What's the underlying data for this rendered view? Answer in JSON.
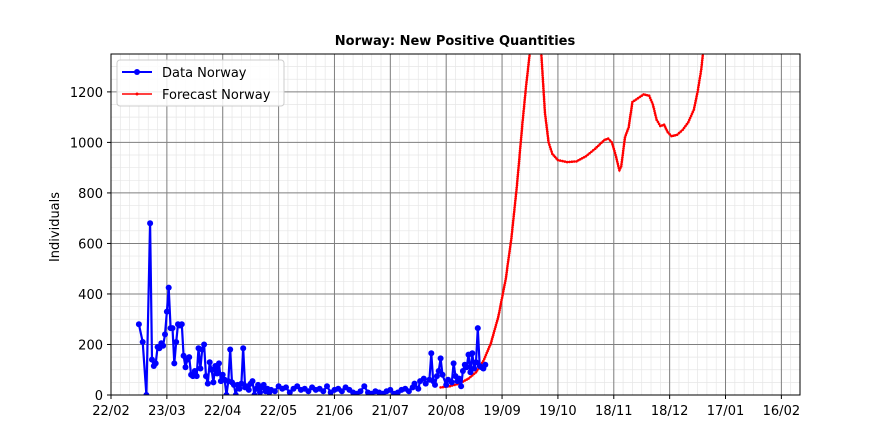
{
  "chart_data": {
    "type": "line",
    "title": "Norway: New Positive Quantities",
    "xlabel": "",
    "ylabel": "Individuals",
    "ylim": [
      0,
      1350
    ],
    "xlim": [
      "2020-02-22",
      "2021-02-26"
    ],
    "grid": true,
    "legend_position": "top-left",
    "x_tick_labels": [
      "22/02",
      "23/03",
      "22/04",
      "22/05",
      "21/06",
      "21/07",
      "20/08",
      "19/09",
      "19/10",
      "18/11",
      "18/12",
      "17/01",
      "16/02"
    ],
    "x_tick_dates": [
      "2020-02-22",
      "2020-03-23",
      "2020-04-22",
      "2020-05-22",
      "2020-06-21",
      "2020-07-21",
      "2020-08-20",
      "2020-09-19",
      "2020-10-19",
      "2020-11-18",
      "2020-12-18",
      "2021-01-17",
      "2021-02-16"
    ],
    "y_ticks": [
      0,
      200,
      400,
      600,
      800,
      1000,
      1200
    ],
    "series": [
      {
        "name": "Data Norway",
        "color": "#0000ff",
        "marker": "circle",
        "points": [
          [
            "2020-03-08",
            280
          ],
          [
            "2020-03-10",
            210
          ],
          [
            "2020-03-12",
            0
          ],
          [
            "2020-03-14",
            680
          ],
          [
            "2020-03-15",
            140
          ],
          [
            "2020-03-16",
            115
          ],
          [
            "2020-03-17",
            125
          ],
          [
            "2020-03-18",
            190
          ],
          [
            "2020-03-19",
            185
          ],
          [
            "2020-03-20",
            205
          ],
          [
            "2020-03-21",
            195
          ],
          [
            "2020-03-22",
            240
          ],
          [
            "2020-03-23",
            330
          ],
          [
            "2020-03-24",
            425
          ],
          [
            "2020-03-25",
            265
          ],
          [
            "2020-03-26",
            265
          ],
          [
            "2020-03-27",
            125
          ],
          [
            "2020-03-28",
            210
          ],
          [
            "2020-03-29",
            280
          ],
          [
            "2020-03-30",
            275
          ],
          [
            "2020-03-31",
            280
          ],
          [
            "2020-04-01",
            155
          ],
          [
            "2020-04-02",
            110
          ],
          [
            "2020-04-03",
            140
          ],
          [
            "2020-04-04",
            150
          ],
          [
            "2020-04-05",
            80
          ],
          [
            "2020-04-06",
            75
          ],
          [
            "2020-04-07",
            95
          ],
          [
            "2020-04-08",
            75
          ],
          [
            "2020-04-09",
            185
          ],
          [
            "2020-04-10",
            105
          ],
          [
            "2020-04-11",
            180
          ],
          [
            "2020-04-12",
            200
          ],
          [
            "2020-04-13",
            75
          ],
          [
            "2020-04-14",
            45
          ],
          [
            "2020-04-15",
            130
          ],
          [
            "2020-04-16",
            100
          ],
          [
            "2020-04-17",
            50
          ],
          [
            "2020-04-18",
            115
          ],
          [
            "2020-04-19",
            85
          ],
          [
            "2020-04-20",
            125
          ],
          [
            "2020-04-21",
            55
          ],
          [
            "2020-04-22",
            80
          ],
          [
            "2020-04-23",
            60
          ],
          [
            "2020-04-24",
            0
          ],
          [
            "2020-04-25",
            55
          ],
          [
            "2020-04-26",
            180
          ],
          [
            "2020-04-27",
            50
          ],
          [
            "2020-04-28",
            40
          ],
          [
            "2020-04-29",
            0
          ],
          [
            "2020-04-30",
            40
          ],
          [
            "2020-05-01",
            25
          ],
          [
            "2020-05-02",
            45
          ],
          [
            "2020-05-03",
            185
          ],
          [
            "2020-05-04",
            30
          ],
          [
            "2020-05-05",
            35
          ],
          [
            "2020-05-06",
            20
          ],
          [
            "2020-05-07",
            45
          ],
          [
            "2020-05-08",
            55
          ],
          [
            "2020-05-09",
            0
          ],
          [
            "2020-05-10",
            25
          ],
          [
            "2020-05-11",
            40
          ],
          [
            "2020-05-12",
            10
          ],
          [
            "2020-05-13",
            30
          ],
          [
            "2020-05-14",
            40
          ],
          [
            "2020-05-15",
            15
          ],
          [
            "2020-05-16",
            25
          ],
          [
            "2020-05-17",
            10
          ],
          [
            "2020-05-18",
            20
          ],
          [
            "2020-05-20",
            15
          ],
          [
            "2020-05-22",
            35
          ],
          [
            "2020-05-24",
            25
          ],
          [
            "2020-05-26",
            30
          ],
          [
            "2020-05-28",
            10
          ],
          [
            "2020-05-30",
            25
          ],
          [
            "2020-06-01",
            35
          ],
          [
            "2020-06-03",
            20
          ],
          [
            "2020-06-05",
            25
          ],
          [
            "2020-06-07",
            15
          ],
          [
            "2020-06-09",
            30
          ],
          [
            "2020-06-11",
            20
          ],
          [
            "2020-06-13",
            25
          ],
          [
            "2020-06-15",
            15
          ],
          [
            "2020-06-17",
            35
          ],
          [
            "2020-06-19",
            10
          ],
          [
            "2020-06-21",
            20
          ],
          [
            "2020-06-23",
            25
          ],
          [
            "2020-06-25",
            15
          ],
          [
            "2020-06-27",
            30
          ],
          [
            "2020-06-29",
            20
          ],
          [
            "2020-07-01",
            10
          ],
          [
            "2020-07-03",
            5
          ],
          [
            "2020-07-05",
            15
          ],
          [
            "2020-07-07",
            35
          ],
          [
            "2020-07-09",
            10
          ],
          [
            "2020-07-11",
            5
          ],
          [
            "2020-07-13",
            15
          ],
          [
            "2020-07-15",
            10
          ],
          [
            "2020-07-17",
            5
          ],
          [
            "2020-07-19",
            15
          ],
          [
            "2020-07-21",
            20
          ],
          [
            "2020-07-23",
            5
          ],
          [
            "2020-07-25",
            10
          ],
          [
            "2020-07-27",
            20
          ],
          [
            "2020-07-29",
            25
          ],
          [
            "2020-07-31",
            15
          ],
          [
            "2020-08-02",
            30
          ],
          [
            "2020-08-03",
            45
          ],
          [
            "2020-08-05",
            25
          ],
          [
            "2020-08-06",
            55
          ],
          [
            "2020-08-08",
            65
          ],
          [
            "2020-08-09",
            45
          ],
          [
            "2020-08-11",
            60
          ],
          [
            "2020-08-12",
            165
          ],
          [
            "2020-08-13",
            55
          ],
          [
            "2020-08-14",
            40
          ],
          [
            "2020-08-15",
            75
          ],
          [
            "2020-08-16",
            95
          ],
          [
            "2020-08-17",
            145
          ],
          [
            "2020-08-18",
            80
          ],
          [
            "2020-08-20",
            40
          ],
          [
            "2020-08-21",
            60
          ],
          [
            "2020-08-23",
            50
          ],
          [
            "2020-08-24",
            125
          ],
          [
            "2020-08-25",
            75
          ],
          [
            "2020-08-26",
            55
          ],
          [
            "2020-08-27",
            65
          ],
          [
            "2020-08-28",
            35
          ],
          [
            "2020-08-29",
            95
          ],
          [
            "2020-08-30",
            120
          ],
          [
            "2020-08-31",
            110
          ],
          [
            "2020-09-01",
            160
          ],
          [
            "2020-09-02",
            90
          ],
          [
            "2020-09-03",
            165
          ],
          [
            "2020-09-04",
            105
          ],
          [
            "2020-09-05",
            130
          ],
          [
            "2020-09-06",
            265
          ],
          [
            "2020-09-07",
            115
          ],
          [
            "2020-09-08",
            110
          ],
          [
            "2020-09-09",
            105
          ],
          [
            "2020-09-10",
            120
          ]
        ]
      },
      {
        "name": "Forecast Norway",
        "color": "#ff0000",
        "marker": "small-dot",
        "points": [
          [
            "2020-08-17",
            30
          ],
          [
            "2020-08-22",
            35
          ],
          [
            "2020-08-27",
            45
          ],
          [
            "2020-09-01",
            65
          ],
          [
            "2020-09-05",
            90
          ],
          [
            "2020-09-09",
            135
          ],
          [
            "2020-09-13",
            205
          ],
          [
            "2020-09-17",
            310
          ],
          [
            "2020-09-21",
            460
          ],
          [
            "2020-09-24",
            620
          ],
          [
            "2020-09-27",
            830
          ],
          [
            "2020-09-30",
            1080
          ],
          [
            "2020-10-02",
            1230
          ],
          [
            "2020-10-04",
            1360
          ],
          null,
          [
            "2020-10-10",
            1360
          ],
          [
            "2020-10-12",
            1120
          ],
          [
            "2020-10-14",
            1000
          ],
          [
            "2020-10-16",
            955
          ],
          [
            "2020-10-19",
            930
          ],
          [
            "2020-10-24",
            922
          ],
          [
            "2020-10-29",
            925
          ],
          [
            "2020-11-03",
            945
          ],
          [
            "2020-11-08",
            975
          ],
          [
            "2020-11-13",
            1010
          ],
          [
            "2020-11-15",
            1015
          ],
          [
            "2020-11-17",
            1000
          ],
          [
            "2020-11-19",
            950
          ],
          [
            "2020-11-21",
            890
          ],
          [
            "2020-11-22",
            905
          ],
          [
            "2020-11-24",
            1020
          ],
          [
            "2020-11-26",
            1060
          ],
          [
            "2020-11-28",
            1160
          ],
          [
            "2020-12-01",
            1175
          ],
          [
            "2020-12-04",
            1190
          ],
          [
            "2020-12-07",
            1185
          ],
          [
            "2020-12-09",
            1150
          ],
          [
            "2020-12-11",
            1090
          ],
          [
            "2020-12-13",
            1065
          ],
          [
            "2020-12-15",
            1070
          ],
          [
            "2020-12-17",
            1040
          ],
          [
            "2020-12-19",
            1025
          ],
          [
            "2020-12-22",
            1030
          ],
          [
            "2020-12-25",
            1050
          ],
          [
            "2020-12-28",
            1080
          ],
          [
            "2020-12-31",
            1130
          ],
          [
            "2021-01-02",
            1200
          ],
          [
            "2021-01-04",
            1290
          ],
          [
            "2021-01-05",
            1360
          ]
        ]
      }
    ]
  }
}
